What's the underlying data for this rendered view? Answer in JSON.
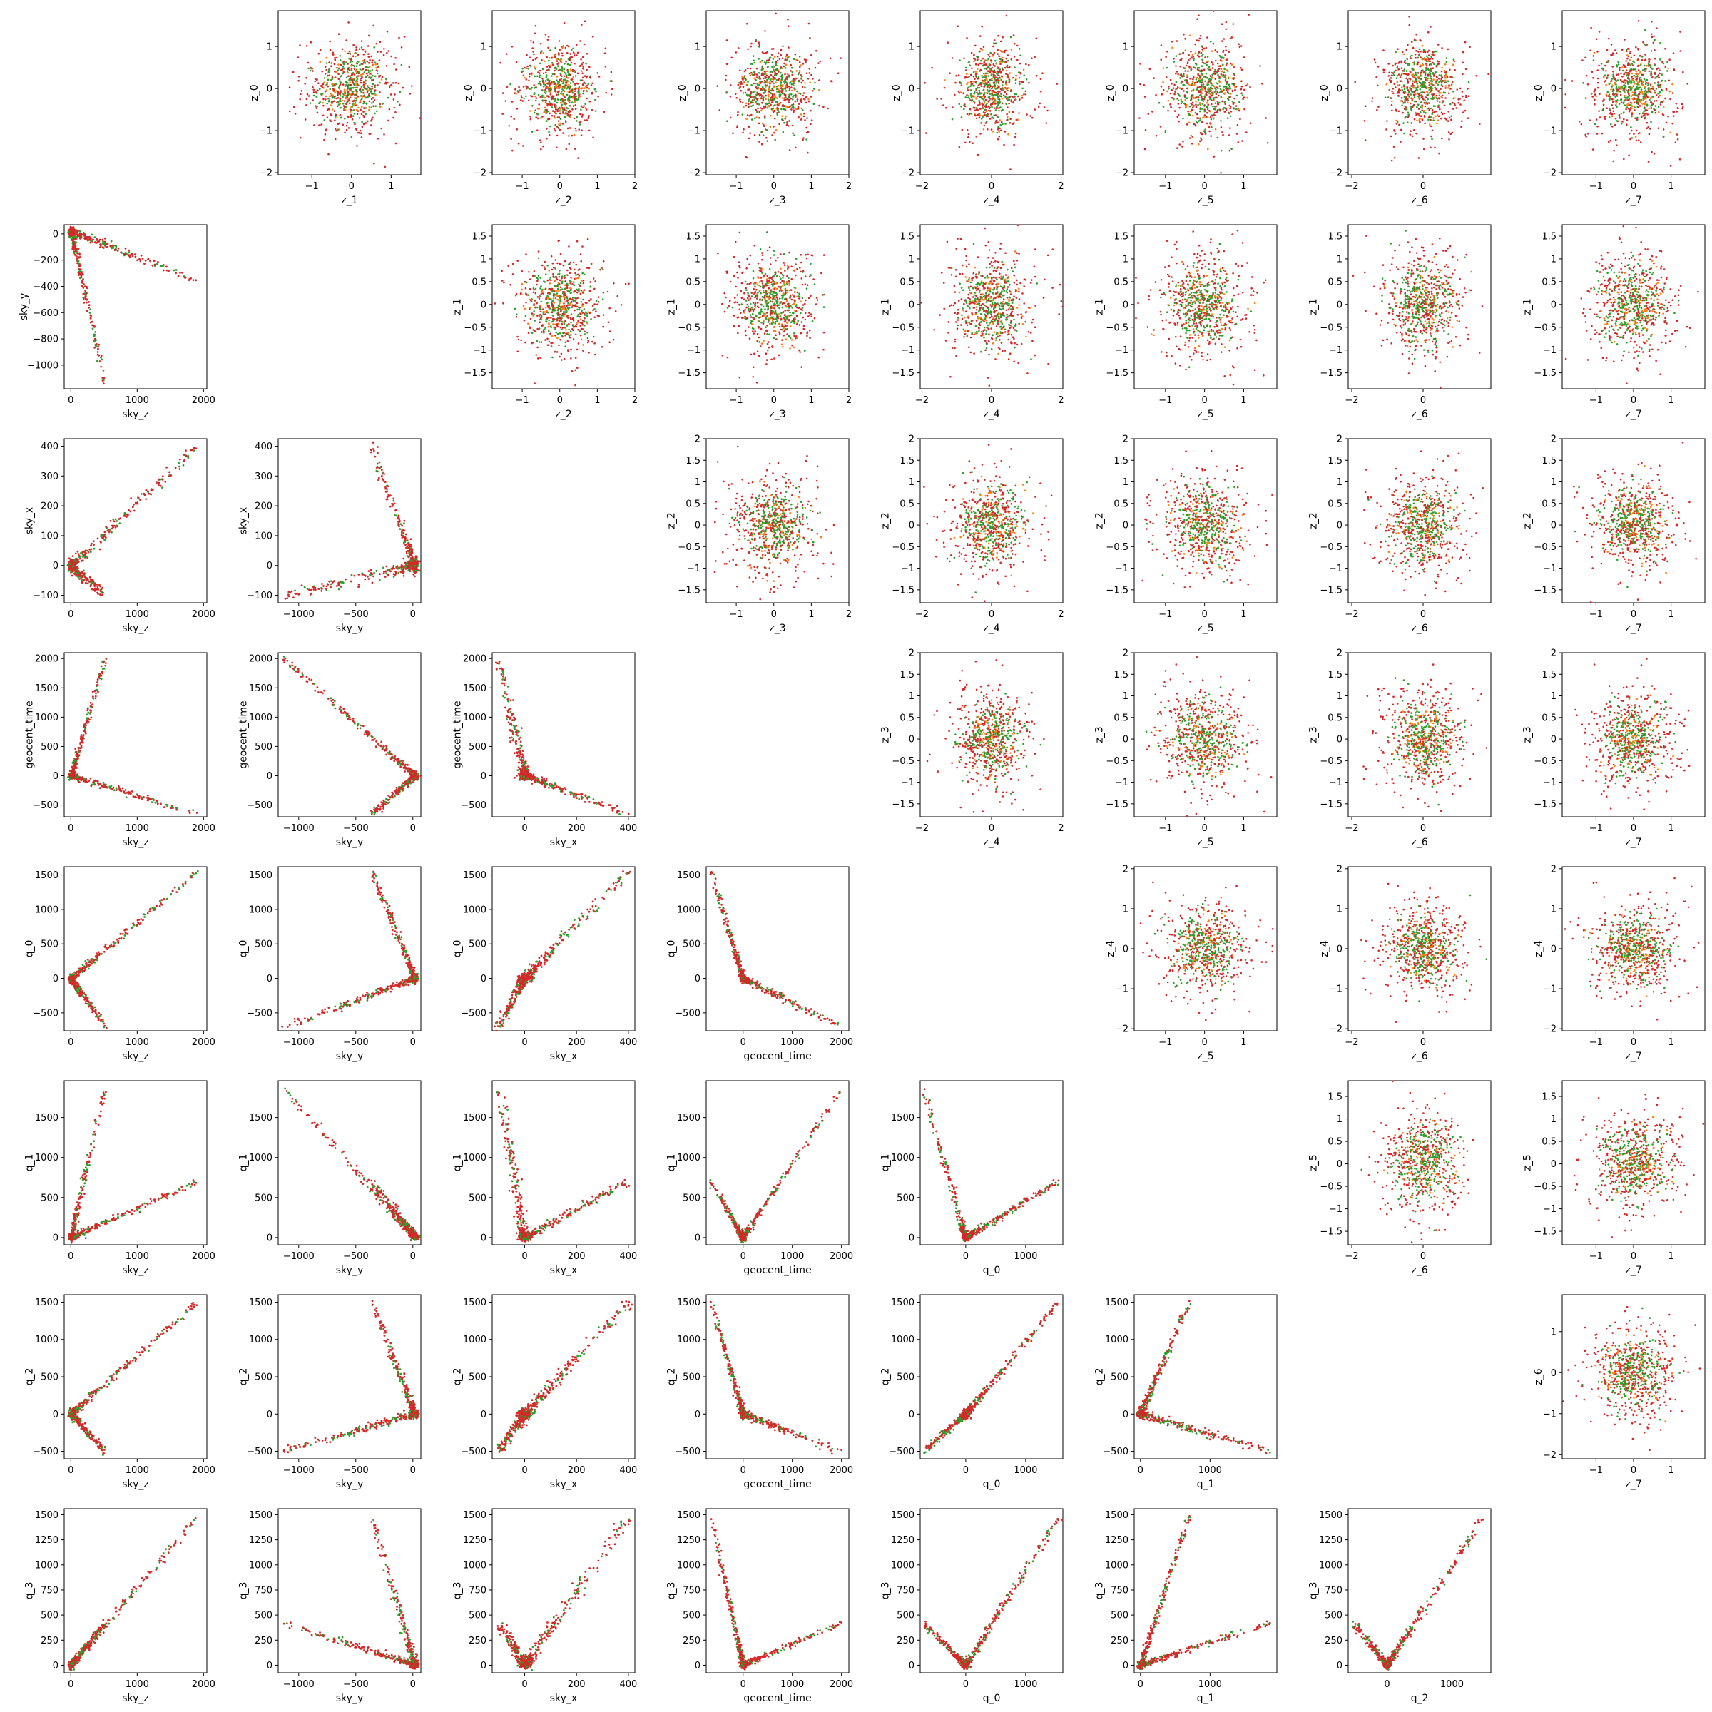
{
  "colors": {
    "primary": "#d62728",
    "secondary": "#2ca02c",
    "tertiary": "#ff7f0e"
  },
  "chart_data": {
    "type": "scatter",
    "description_axes": {
      "sky_z": {
        "label": "sky_z",
        "range": [
          -100,
          2050
        ],
        "ticks": [
          0,
          1000,
          2000
        ]
      },
      "sky_y": {
        "label": "sky_y",
        "range": [
          -1180,
          70
        ],
        "ticks": [
          -1000,
          -500,
          0
        ]
      },
      "sky_y_vert": {
        "label": "sky_y",
        "range": [
          -1180,
          70
        ],
        "ticks": [
          -1000,
          -800,
          -600,
          -400,
          -200,
          0
        ]
      },
      "sky_x": {
        "label": "sky_x",
        "range": [
          -125,
          425
        ],
        "ticks": [
          0,
          200,
          400
        ]
      },
      "sky_x_vert": {
        "label": "sky_x",
        "range": [
          -125,
          425
        ],
        "ticks": [
          -100,
          0,
          100,
          200,
          300,
          400
        ]
      },
      "geocent_time": {
        "label": "geocent_time",
        "range": [
          -750,
          2150
        ],
        "ticks": [
          0,
          1000,
          2000
        ]
      },
      "geocent_time_vert": {
        "label": "geocent_time",
        "range": [
          -700,
          2100
        ],
        "ticks": [
          -500,
          0,
          500,
          1000,
          1500,
          2000
        ]
      },
      "q_0": {
        "label": "q_0",
        "range": [
          -760,
          1620
        ],
        "ticks": [
          0,
          1000
        ]
      },
      "q_0_vert": {
        "label": "q_0",
        "range": [
          -760,
          1620
        ],
        "ticks": [
          -500,
          0,
          500,
          1000,
          1500
        ]
      },
      "q_1": {
        "label": "q_1",
        "range": [
          -90,
          1960
        ],
        "ticks": [
          0,
          1000
        ]
      },
      "q_1_vert": {
        "label": "q_1",
        "range": [
          -90,
          1960
        ],
        "ticks": [
          0,
          500,
          1000,
          1500
        ]
      },
      "q_2": {
        "label": "q_2",
        "range": [
          -600,
          1600
        ],
        "ticks": [
          0,
          1000
        ]
      },
      "q_2_vert": {
        "label": "q_2",
        "range": [
          -600,
          1600
        ],
        "ticks": [
          -500,
          0,
          500,
          1000,
          1500
        ]
      },
      "q_3": {
        "label": "q_3",
        "range": [
          -75,
          1560
        ],
        "ticks": [
          0,
          250,
          500,
          750,
          1000,
          1250,
          1500
        ]
      }
    },
    "latent_axes": {
      "z_0": {
        "label": "z_0",
        "range": [
          -2.05,
          1.85
        ],
        "ticks": [
          -2,
          -1,
          0,
          1
        ]
      },
      "z_1": {
        "label": "z_1",
        "range": [
          -1.85,
          1.75
        ],
        "ticks": [
          -1.5,
          -1.0,
          -0.5,
          0.0,
          0.5,
          1.0,
          1.5
        ],
        "xticks": [
          -1,
          0,
          1
        ]
      },
      "z_2": {
        "label": "z_2",
        "range": [
          -1.8,
          2.0
        ],
        "ticks": [
          -1.5,
          -1.0,
          -0.5,
          0.0,
          0.5,
          1.0,
          1.5,
          2.0
        ],
        "xticks": [
          -1,
          0,
          1,
          2
        ]
      },
      "z_3": {
        "label": "z_3",
        "range": [
          -1.8,
          2.0
        ],
        "ticks": [
          -1.5,
          -1.0,
          -0.5,
          0.0,
          0.5,
          1.0,
          1.5,
          2.0
        ],
        "xticks": [
          -1,
          0,
          1,
          2
        ]
      },
      "z_4": {
        "label": "z_4",
        "range": [
          -2.05,
          2.05
        ],
        "ticks": [
          -2,
          -1,
          0,
          1,
          2
        ],
        "xticks": [
          -2,
          0,
          2
        ]
      },
      "z_5": {
        "label": "z_5",
        "range": [
          -1.8,
          1.85
        ],
        "ticks": [
          -1.5,
          -1.0,
          -0.5,
          0.0,
          0.5,
          1.0,
          1.5
        ],
        "xticks": [
          -1,
          0,
          1
        ]
      },
      "z_6": {
        "label": "z_6",
        "range": [
          -2.1,
          1.9
        ],
        "ticks": [
          -2,
          -1,
          0,
          1
        ],
        "xticks": [
          -2,
          0
        ]
      },
      "z_7": {
        "label": "z_7",
        "range": [
          -1.9,
          1.9
        ],
        "xticks": [
          -1,
          0,
          1
        ]
      }
    },
    "grid": false,
    "legend": "none",
    "scatter_rows": [
      {
        "ylabel": "z_0",
        "panels": [
          {
            "x": "z_1",
            "y": "z_0"
          },
          {
            "x": "z_2",
            "y": "z_0"
          },
          {
            "x": "z_3",
            "y": "z_0"
          },
          {
            "x": "z_4",
            "y": "z_0"
          },
          {
            "x": "z_5",
            "y": "z_0"
          },
          {
            "x": "z_6",
            "y": "z_0"
          },
          {
            "x": "z_7",
            "y": "z_0"
          }
        ]
      },
      {
        "ylabel": "z_1",
        "panels": [
          {
            "x": "z_2",
            "y": "z_1"
          },
          {
            "x": "z_3",
            "y": "z_1"
          },
          {
            "x": "z_4",
            "y": "z_1"
          },
          {
            "x": "z_5",
            "y": "z_1"
          },
          {
            "x": "z_6",
            "y": "z_1"
          },
          {
            "x": "z_7",
            "y": "z_1"
          }
        ]
      },
      {
        "ylabel": "z_2",
        "panels": [
          {
            "x": "z_3",
            "y": "z_2"
          },
          {
            "x": "z_4",
            "y": "z_2"
          },
          {
            "x": "z_5",
            "y": "z_2"
          },
          {
            "x": "z_6",
            "y": "z_2"
          },
          {
            "x": "z_7",
            "y": "z_2"
          }
        ]
      },
      {
        "ylabel": "z_3",
        "panels": [
          {
            "x": "z_4",
            "y": "z_3"
          },
          {
            "x": "z_5",
            "y": "z_3"
          },
          {
            "x": "z_6",
            "y": "z_3"
          },
          {
            "x": "z_7",
            "y": "z_3"
          }
        ]
      },
      {
        "ylabel": "z_4",
        "panels": [
          {
            "x": "z_5",
            "y": "z_4"
          },
          {
            "x": "z_6",
            "y": "z_4"
          },
          {
            "x": "z_7",
            "y": "z_4"
          }
        ]
      },
      {
        "ylabel": "z_5",
        "panels": [
          {
            "x": "z_6",
            "y": "z_5"
          },
          {
            "x": "z_7",
            "y": "z_5"
          }
        ]
      },
      {
        "ylabel": "z_6",
        "panels": [
          {
            "x": "z_7",
            "y": "z_6"
          }
        ]
      }
    ],
    "description_rows": [
      {
        "y": "sky_y",
        "x": [
          "sky_z"
        ]
      },
      {
        "y": "sky_x",
        "x": [
          "sky_z",
          "sky_y"
        ]
      },
      {
        "y": "geocent_time",
        "x": [
          "sky_z",
          "sky_y",
          "sky_x"
        ]
      },
      {
        "y": "q_0",
        "x": [
          "sky_z",
          "sky_y",
          "sky_x",
          "geocent_time"
        ]
      },
      {
        "y": "q_1",
        "x": [
          "sky_z",
          "sky_y",
          "sky_x",
          "geocent_time",
          "q_0"
        ]
      },
      {
        "y": "q_2",
        "x": [
          "sky_z",
          "sky_y",
          "sky_x",
          "geocent_time",
          "q_0",
          "q_1"
        ]
      },
      {
        "y": "q_3",
        "x": [
          "sky_z",
          "sky_y",
          "sky_x",
          "geocent_time",
          "q_0",
          "q_1",
          "q_2"
        ]
      }
    ]
  }
}
